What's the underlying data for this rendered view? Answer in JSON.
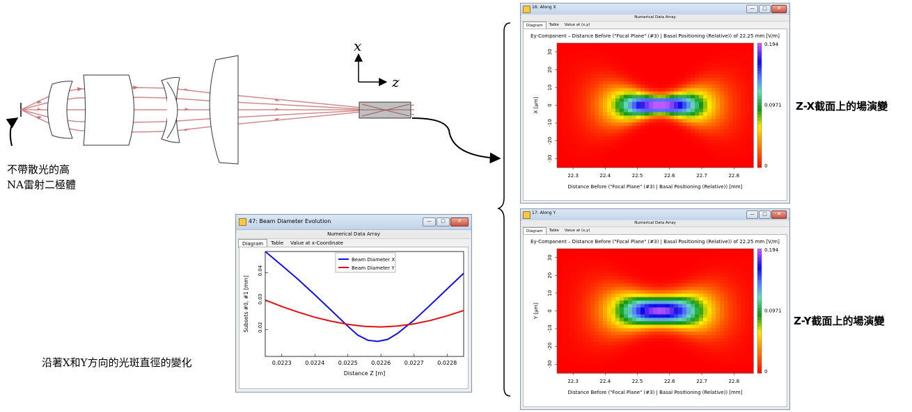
{
  "annotations": {
    "source_label_line1": "不帶散光的高",
    "source_label_line2": "NA雷射二極體",
    "beam_evolution_label": "沿著X和Y方向的光斑直徑的變化",
    "zx_label": "Z-X截面上的場演變",
    "zy_label": "Z-Y截面上的場演變",
    "axis_x": "x",
    "axis_z": "z"
  },
  "window_controls": {
    "minimize": "—",
    "maximize": "□",
    "close": "✕"
  },
  "colors": {
    "ray": "#d08a8a",
    "detector_fill": "#c0c0c0",
    "series_x": "#1010e0",
    "series_y": "#e01010",
    "map_low": "#ff0000",
    "map_high": "#a040ff"
  },
  "win_beam": {
    "title": "47: Beam Diameter Evolution",
    "subheader": "Numerical Data Array",
    "tabs": [
      "Diagram",
      "Table",
      "Value at x-Coordinate"
    ],
    "active_tab": 0
  },
  "win_x": {
    "title": "16: Along X",
    "subheader": "Numerical Data Array",
    "tabs": [
      "Diagram",
      "Table",
      "Value at (x,y)"
    ],
    "active_tab": 0
  },
  "win_y": {
    "title": "17: Along Y",
    "subheader": "Numerical Data Array",
    "tabs": [
      "Diagram",
      "Table",
      "Value at (x,y)"
    ],
    "active_tab": 0
  },
  "chart_data": [
    {
      "type": "line",
      "title": "",
      "xlabel": "Distance Z [m]",
      "ylabel": "Subsets #0, #1 [mm]",
      "xlim": [
        0.02225,
        0.02285
      ],
      "ylim": [
        0.0105,
        0.0475
      ],
      "xticks": [
        "0.0223",
        "0.0224",
        "0.0225",
        "0.0226",
        "0.0227",
        "0.0228"
      ],
      "yticks": [
        "0.02",
        "0.03",
        "0.04"
      ],
      "legend": "top-center",
      "series": [
        {
          "name": "Beam Diameter X",
          "color": "#1010e0",
          "x": [
            0.02225,
            0.0223,
            0.02235,
            0.0224,
            0.02245,
            0.0225,
            0.02253,
            0.02256,
            0.02259,
            0.02262,
            0.02265,
            0.0227,
            0.02275,
            0.0228,
            0.02285
          ],
          "y": [
            0.0475,
            0.0426,
            0.0376,
            0.0322,
            0.0267,
            0.0211,
            0.018,
            0.0162,
            0.0158,
            0.0165,
            0.0186,
            0.0233,
            0.0287,
            0.0343,
            0.0398
          ]
        },
        {
          "name": "Beam Diameter Y",
          "color": "#e01010",
          "x": [
            0.02225,
            0.0223,
            0.02235,
            0.0224,
            0.02245,
            0.0225,
            0.02255,
            0.0226,
            0.02265,
            0.0227,
            0.02275,
            0.0228,
            0.02285
          ],
          "y": [
            0.0304,
            0.0281,
            0.0261,
            0.0243,
            0.0229,
            0.0218,
            0.0211,
            0.0209,
            0.0212,
            0.022,
            0.0232,
            0.0248,
            0.0267
          ]
        }
      ]
    },
    {
      "type": "heatmap",
      "title": "Ey-Component – Distance Before (\"Focal Plane\" (#3) | Basal Positioning (Relative)) of 22.25 mm  [V/m]",
      "xlabel": "Distance Before (\"Focal Plane\" (#3) | Basal Positioning (Relative)) [mm]",
      "ylabel": "X [µm]",
      "xlim": [
        22.25,
        22.86
      ],
      "ylim": [
        -35,
        35
      ],
      "xticks": [
        "22.3",
        "22.4",
        "22.5",
        "22.6",
        "22.7",
        "22.8"
      ],
      "yticks": [
        "30",
        "20",
        "10",
        "0",
        "-10",
        "-20",
        "-30"
      ],
      "colorbar": [
        "0.194",
        "0.0971",
        "0"
      ],
      "peak": 0.194,
      "focus_x": 22.57
    },
    {
      "type": "heatmap",
      "title": "Ey-Component – Distance Before (\"Focal Plane\" (#3) | Basal Positioning (Relative)) of 22.25 mm  [V/m]",
      "xlabel": "Distance Before (\"Focal Plane\" (#3) | Basal Positioning (Relative)) [mm]",
      "ylabel": "Y [µm]",
      "xlim": [
        22.25,
        22.86
      ],
      "ylim": [
        -35,
        35
      ],
      "xticks": [
        "22.3",
        "22.4",
        "22.5",
        "22.6",
        "22.7",
        "22.8"
      ],
      "yticks": [
        "30",
        "20",
        "10",
        "0",
        "-10",
        "-20",
        "-30"
      ],
      "colorbar": [
        "0.194",
        "0.0971",
        "0"
      ],
      "peak": 0.194,
      "focus_x": 22.57
    }
  ]
}
